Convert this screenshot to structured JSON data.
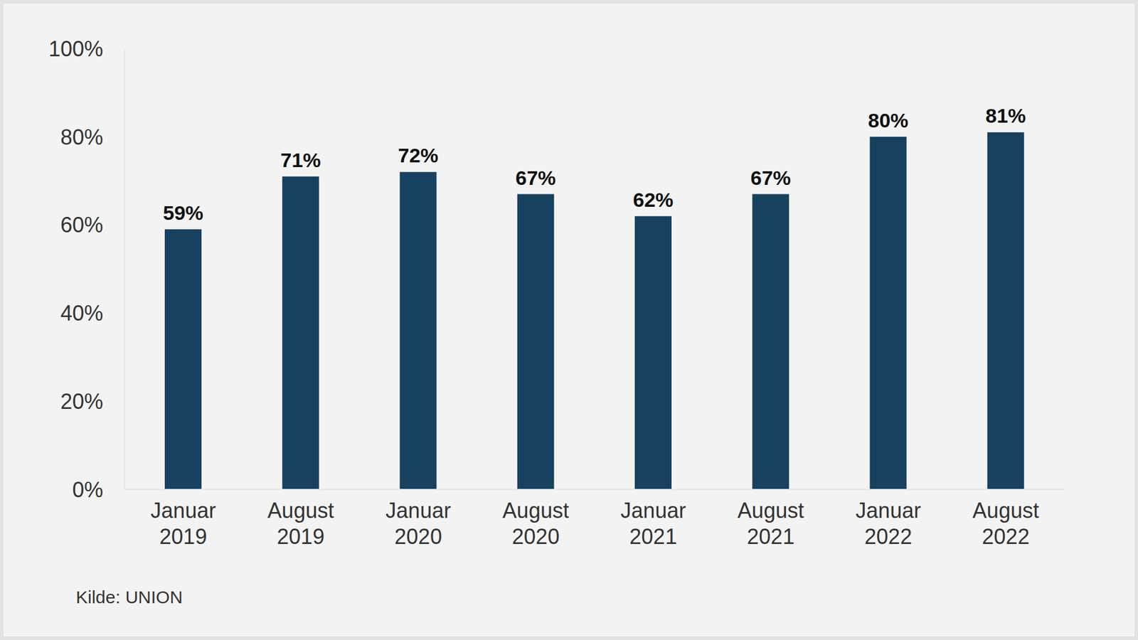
{
  "chart_data": {
    "type": "bar",
    "categories": [
      "Januar 2019",
      "August 2019",
      "Januar 2020",
      "August 2020",
      "Januar 2021",
      "August 2021",
      "Januar 2022",
      "August 2022"
    ],
    "values": [
      59,
      71,
      72,
      67,
      62,
      67,
      80,
      81
    ],
    "value_labels": [
      "59%",
      "71%",
      "72%",
      "67%",
      "62%",
      "67%",
      "80%",
      "81%"
    ],
    "color": "#17415f",
    "ylim": [
      0,
      100
    ],
    "yticks": [
      {
        "value": 0,
        "label": "0%"
      },
      {
        "value": 20,
        "label": "20%"
      },
      {
        "value": 40,
        "label": "40%"
      },
      {
        "value": 60,
        "label": "60%"
      },
      {
        "value": 80,
        "label": "80%"
      },
      {
        "value": 100,
        "label": "100%"
      }
    ],
    "grid": false,
    "data_labels": true,
    "annotations": [
      "Kilde: UNION"
    ]
  }
}
